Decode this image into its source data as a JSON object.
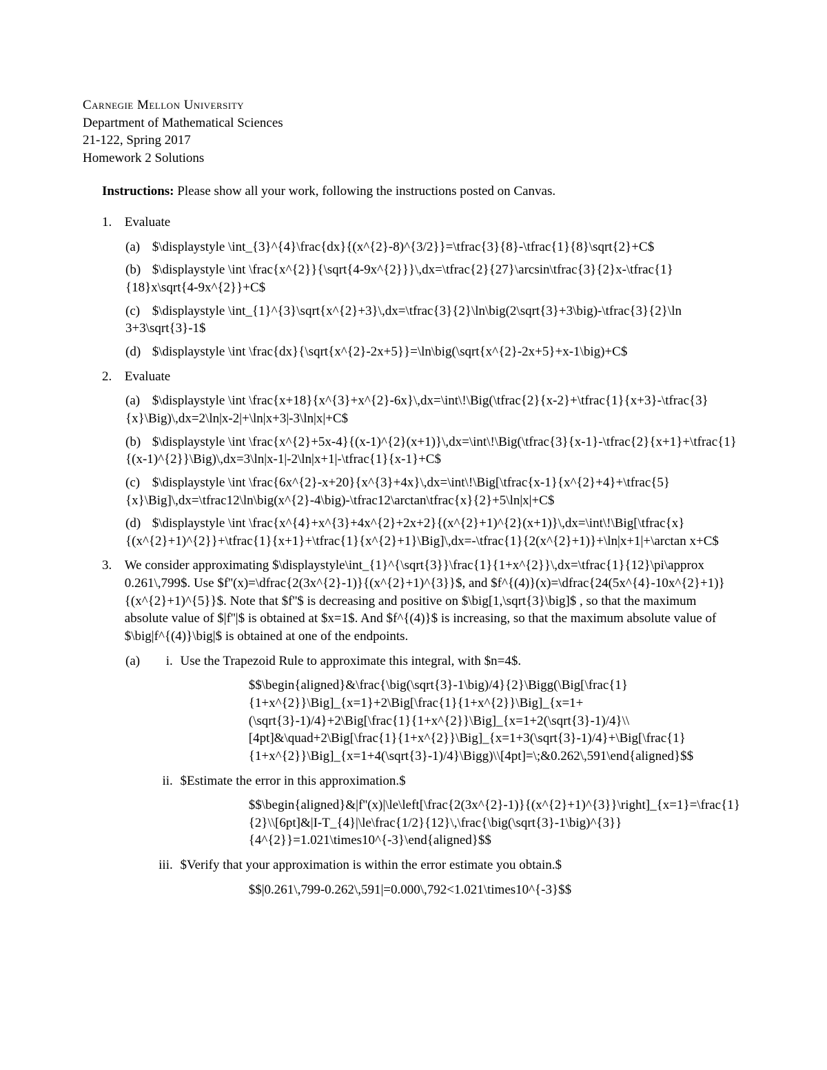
{
  "colors": {
    "text": "#000000",
    "background": "#ffffff"
  },
  "typography": {
    "font_family": "Times New Roman",
    "body_fontsize_pt": 14,
    "line_height": 1.35
  },
  "header": {
    "university": "Carnegie Mellon University",
    "department": "Department of Mathematical Sciences",
    "course": "21-122, Spring 2017",
    "title": "Homework 2 Solutions"
  },
  "instructions": {
    "label": "Instructions:",
    "text": "Please show all your work, following the instructions posted on Canvas."
  },
  "problems": [
    {
      "number": "1.",
      "prompt": "Evaluate",
      "parts": [
        {
          "label": "(a)",
          "tex": "\\displaystyle \\int_{3}^{4}\\frac{dx}{(x^{2}-8)^{3/2}}=\\tfrac{3}{8}-\\tfrac{1}{8}\\sqrt{2}+C"
        },
        {
          "label": "(b)",
          "tex": "\\displaystyle \\int \\frac{x^{2}}{\\sqrt{4-9x^{2}}}\\,dx=\\tfrac{2}{27}\\arcsin\\tfrac{3}{2}x-\\tfrac{1}{18}x\\sqrt{4-9x^{2}}+C"
        },
        {
          "label": "(c)",
          "tex": "\\displaystyle \\int_{1}^{3}\\sqrt{x^{2}+3}\\,dx=\\tfrac{3}{2}\\ln\\big(2\\sqrt{3}+3\\big)-\\tfrac{3}{2}\\ln 3+3\\sqrt{3}-1"
        },
        {
          "label": "(d)",
          "tex": "\\displaystyle \\int \\frac{dx}{\\sqrt{x^{2}-2x+5}}=\\ln\\big(\\sqrt{x^{2}-2x+5}+x-1\\big)+C"
        }
      ]
    },
    {
      "number": "2.",
      "prompt": "Evaluate",
      "parts": [
        {
          "label": "(a)",
          "tex": "\\displaystyle \\int \\frac{x+18}{x^{3}+x^{2}-6x}\\,dx=\\int\\!\\Big(\\tfrac{2}{x-2}+\\tfrac{1}{x+3}-\\tfrac{3}{x}\\Big)\\,dx=2\\ln|x-2|+\\ln|x+3|-3\\ln|x|+C"
        },
        {
          "label": "(b)",
          "tex": "\\displaystyle \\int \\frac{x^{2}+5x-4}{(x-1)^{2}(x+1)}\\,dx=\\int\\!\\Big(\\tfrac{3}{x-1}-\\tfrac{2}{x+1}+\\tfrac{1}{(x-1)^{2}}\\Big)\\,dx=3\\ln|x-1|-2\\ln|x+1|-\\tfrac{1}{x-1}+C"
        },
        {
          "label": "(c)",
          "tex": "\\displaystyle \\int \\frac{6x^{2}-x+20}{x^{3}+4x}\\,dx=\\int\\!\\Big[\\tfrac{x-1}{x^{2}+4}+\\tfrac{5}{x}\\Big]\\,dx=\\tfrac12\\ln\\big(x^{2}-4\\big)-\\tfrac12\\arctan\\tfrac{x}{2}+5\\ln|x|+C"
        },
        {
          "label": "(d)",
          "tex": "\\displaystyle \\int \\frac{x^{4}+x^{3}+4x^{2}+2x+2}{(x^{2}+1)^{2}(x+1)}\\,dx=\\int\\!\\Big[\\tfrac{x}{(x^{2}+1)^{2}}+\\tfrac{1}{x+1}+\\tfrac{1}{x^{2}+1}\\Big]\\,dx=-\\tfrac{1}{2(x^{2}+1)}+\\ln|x+1|+\\arctan x+C"
        }
      ]
    },
    {
      "number": "3.",
      "intro_tex": "We consider approximating $\\displaystyle\\int_{1}^{\\sqrt{3}}\\frac{1}{1+x^{2}}\\,dx=\\tfrac{1}{12}\\pi\\approx 0.261\\,799$. Use $f''(x)=\\dfrac{2(3x^{2}-1)}{(x^{2}+1)^{3}}$, and $f^{(4)}(x)=\\dfrac{24(5x^{4}-10x^{2}+1)}{(x^{2}+1)^{5}}$. Note that $f''$ is decreasing and positive on $\\big[1,\\sqrt{3}\\big]$ , so that the maximum absolute value of $|f''|$ is obtained at $x=1$. And $f^{(4)}$ is increasing, so that the maximum absolute value of $\\big|f^{(4)}\\big|$ is obtained at one of the endpoints.",
      "part_a": {
        "label": "(a)",
        "items": [
          {
            "roman": "i.",
            "text": "Use the Trapezoid Rule to approximate this integral, with $n=4$.",
            "display_tex": "\\begin{aligned}&\\frac{\\big(\\sqrt{3}-1\\big)/4}{2}\\Bigg(\\Big[\\frac{1}{1+x^{2}}\\Big]_{x=1}+2\\Big[\\frac{1}{1+x^{2}}\\Big]_{x=1+(\\sqrt{3}-1)/4}+2\\Big[\\frac{1}{1+x^{2}}\\Big]_{x=1+2(\\sqrt{3}-1)/4}\\\\[4pt]&\\quad+2\\Big[\\frac{1}{1+x^{2}}\\Big]_{x=1+3(\\sqrt{3}-1)/4}+\\Big[\\frac{1}{1+x^{2}}\\Big]_{x=1+4(\\sqrt{3}-1)/4}\\Bigg)\\\\[4pt]=\\;&0.262\\,591\\end{aligned}"
          },
          {
            "roman": "ii.",
            "text": "Estimate the error in this approximation.",
            "display_tex": "\\begin{aligned}&|f''(x)|\\le\\left[\\frac{2(3x^{2}-1)}{(x^{2}+1)^{3}}\\right]_{x=1}=\\frac{1}{2}\\\\[6pt]&|I-T_{4}|\\le\\frac{1/2}{12}\\,\\frac{\\big(\\sqrt{3}-1\\big)^{3}}{4^{2}}=1.021\\times10^{-3}\\end{aligned}"
          },
          {
            "roman": "iii.",
            "text": "Verify that your approximation is within the error estimate you obtain.",
            "display_tex": "|0.261\\,799-0.262\\,591|=0.000\\,792<1.021\\times10^{-3}"
          }
        ]
      }
    }
  ]
}
